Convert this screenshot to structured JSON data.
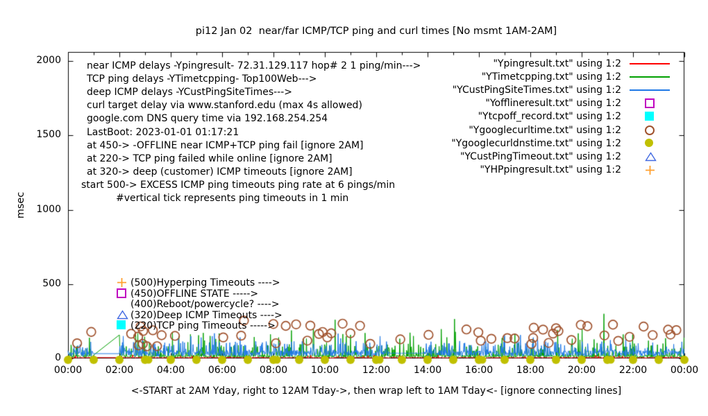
{
  "title": "pi12 Jan 02  near/far ICMP/TCP ping and curl times [No msmt 1AM-2AM]",
  "y_axis": {
    "label": "msec",
    "tick_labels": [
      "0",
      "500",
      "1000",
      "1500",
      "2000"
    ]
  },
  "x_axis": {
    "label": "<-START at 2AM Yday, right to 12AM Tday->, then wrap left to 1AM Tday<- [ignore connecting lines]",
    "tick_labels": [
      "00:00",
      "02:00",
      "04:00",
      "06:00",
      "08:00",
      "10:00",
      "12:00",
      "14:00",
      "16:00",
      "18:00",
      "20:00",
      "22:00",
      "00:00"
    ]
  },
  "info_lines": [
    "near ICMP delays -Ypingresult- 72.31.129.117 hop# 2 1 ping/min--->",
    "TCP ping delays -YTimetcpping- Top100Web--->",
    "deep ICMP delays -YCustPingSiteTimes--->",
    "curl target delay via www.stanford.edu (max 4s allowed)",
    "google.com DNS query time via 192.168.254.254",
    "LastBoot: 2023-01-01 01:17:21",
    "at 450-> -OFFLINE near ICMP+TCP ping fail [ignore 2AM]",
    "at 220-> TCP ping failed while online [ignore 2AM]",
    "at 320-> deep (customer) ICMP timeouts [ignore 2AM]",
    "start 500-> EXCESS ICMP ping timeouts ping rate at 6 pings/min",
    "#vertical tick represents ping timeouts in 1 min"
  ],
  "marker_key": [
    {
      "marker": "plus",
      "color": "#ffa030",
      "label": "(500)Hyperping Timeouts ---->"
    },
    {
      "marker": "open-square",
      "color": "#c000c0",
      "label": "(450)OFFLINE STATE ----->"
    },
    {
      "marker": "none",
      "color": "",
      "label": "(400)Reboot/powercycle? ---->"
    },
    {
      "marker": "open-triangle",
      "color": "#4169e1",
      "label": "(320)Deep ICMP Timeouts ---->"
    },
    {
      "marker": "filled-square",
      "color": "#00ffff",
      "label": "(220)TCP ping Timeouts ----->"
    }
  ],
  "chart_data": {
    "type": "line",
    "title": "pi12 Jan 02  near/far ICMP/TCP ping and curl times [No msmt 1AM-2AM]",
    "xlabel": "<-START at 2AM Yday, right to 12AM Tday->, then wrap left to 1AM Tday<- [ignore connecting lines]",
    "ylabel": "msec",
    "ylim": [
      0,
      2060
    ],
    "y_ticks": [
      0,
      500,
      1000,
      1500,
      2000
    ],
    "x_tick_hours": [
      0,
      2,
      4,
      6,
      8,
      10,
      12,
      14,
      16,
      18,
      20,
      22,
      24
    ],
    "minutes_per_day": 1440,
    "grid": false,
    "legend_position": "top-right-inside",
    "no_msmt_gap_minutes": [
      60,
      120
    ],
    "threshold_codes_ms": {
      "hyperping_timeout": 500,
      "offline": 450,
      "reboot": 400,
      "deep_icmp_timeout": 320,
      "tcp_fail": 220
    },
    "seed": 42,
    "series": [
      {
        "file": "Ypingresult.txt",
        "legend": "\"Ypingresult.txt\" using 1:2",
        "style": "line",
        "marker": "line",
        "color": "#ff0000",
        "desc": "near ICMP ping delay, ~2-9 ms all day",
        "base_ms": [
          2,
          9
        ],
        "spike": {
          "p": 0.02,
          "ms": [
            10,
            24
          ]
        }
      },
      {
        "file": "YTimetcpping.txt",
        "legend": "\"YTimetcpping.txt\" using 1:2",
        "style": "line",
        "marker": "line",
        "color": "#00a000",
        "desc": "TCP ping delay, noisy 5-25 ms with frequent spikes 25-200 ms, few ~260-310 ms",
        "base_ms": [
          5,
          23
        ],
        "spike": {
          "p": 0.22,
          "ms": [
            25,
            95
          ]
        },
        "spike2": {
          "p": 0.05,
          "ms": [
            90,
            200
          ]
        },
        "big_spikes": [
          {
            "min": 624,
            "ms": 260
          },
          {
            "min": 903,
            "ms": 265
          },
          {
            "min": 1252,
            "ms": 300
          }
        ]
      },
      {
        "file": "YCustPingSiteTimes.txt",
        "legend": "\"YCustPingSiteTimes.txt\" using 1:2",
        "style": "line",
        "marker": "line",
        "color": "#1e78e6",
        "desc": "deep ICMP delay, noisy band 15-55 ms with spikes to ~115-170 ms",
        "base_ms": [
          15,
          55
        ],
        "spike": {
          "p": 0.18,
          "ms": [
            55,
            115
          ]
        },
        "spike2": {
          "p": 0.012,
          "ms": [
            110,
            170
          ]
        },
        "plateau": {
          "minutes": [
            750,
            830
          ],
          "ms": [
            33,
            37
          ]
        }
      },
      {
        "file": "Yofflineresult.txt",
        "legend": "\"Yofflineresult.txt\" using 1:2",
        "style": "points",
        "marker": "open-square",
        "color": "#c000c0",
        "desc": "offline events plotted at 450 ms - none this day",
        "points": []
      },
      {
        "file": "Ytcpoff_record.txt",
        "legend": "\"Ytcpoff_record.txt\" using 1:2",
        "style": "points",
        "marker": "filled-square",
        "color": "#00ffff",
        "desc": "TCP fail while online plotted at 220 ms - none this day",
        "points": []
      },
      {
        "file": "Ygooglecurltime.txt",
        "legend": "\"Ygooglecurltime.txt\" using 1:2",
        "style": "points",
        "marker": "open-circle",
        "color": "#a0522d",
        "desc": "curl target delay, scattered points roughly 80-235 ms all day",
        "scatter": {
          "count": 58,
          "ms": [
            80,
            235
          ]
        }
      },
      {
        "file": "Ygooglecurldnstime.txt",
        "legend": "\"Ygooglecurldnstime.txt\" using 1:2",
        "style": "points",
        "marker": "filled-circle",
        "color": "#c0c000",
        "desc": "google.com DNS query time ~0 ms, one dot each hour on the axis",
        "hourly_ms": 0,
        "double_hours": [
          3,
          8,
          12,
          16,
          21
        ]
      },
      {
        "file": "YCustPingTimeout.txt",
        "legend": "\"YCustPingTimeout.txt\" using 1:2",
        "style": "points",
        "marker": "open-triangle",
        "color": "#4169e1",
        "desc": "deep ICMP timeouts plotted at 320 ms - none this day",
        "points": []
      },
      {
        "file": "YHPpingresult.txt",
        "legend": "\"YHPpingresult.txt\" using 1:2",
        "style": "points",
        "marker": "plus",
        "color": "#ffa030",
        "desc": "excess hyperping timeouts plotted from 500 ms - none this day",
        "points": []
      }
    ]
  }
}
